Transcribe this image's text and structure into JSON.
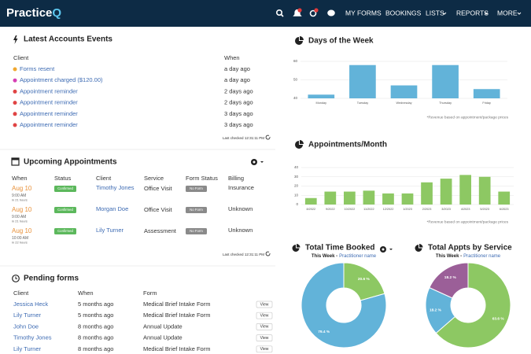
{
  "nav": {
    "logo": "Practice",
    "logo_q": "Q",
    "items": [
      "MY FORMS",
      "BOOKINGS",
      "LISTS",
      "REPORTS",
      "MORE"
    ]
  },
  "events": {
    "title": "Latest Accounts Events",
    "columns": [
      "Client",
      "When"
    ],
    "rows": [
      {
        "event": "Forms resent",
        "when": "a day ago",
        "color": "#f0a830"
      },
      {
        "event": "Appointment charged ($120.00)",
        "when": "a day ago",
        "color": "#d63fb4"
      },
      {
        "event": "Appointment reminder",
        "when": "2 days ago",
        "color": "#e04444"
      },
      {
        "event": "Appointment reminder",
        "when": "2 days ago",
        "color": "#e04444"
      },
      {
        "event": "Appointment reminder",
        "when": "3 days ago",
        "color": "#e04444"
      },
      {
        "event": "Appointment reminder",
        "when": "3 days ago",
        "color": "#e04444"
      }
    ],
    "last_checked": "Last checked 12:31:11 PM"
  },
  "appointments": {
    "title": "Upcoming Appointments",
    "columns": [
      "When",
      "Status",
      "Client",
      "Service",
      "Form Status",
      "Billing"
    ],
    "rows": [
      {
        "date": "Aug 10",
        "time": "9:00 AM",
        "relative": "in 21 hours",
        "status": "Confirmed",
        "client": "Timothy Jones",
        "service": "Office Visit",
        "form_status": "No Form",
        "billing": "Insurance"
      },
      {
        "date": "Aug 10",
        "time": "9:00 AM",
        "relative": "in 21 hours",
        "status": "Confirmed",
        "client": "Morgan Doe",
        "service": "Office Visit",
        "form_status": "No Form",
        "billing": "Unknown"
      },
      {
        "date": "Aug 10",
        "time": "10:00 AM",
        "relative": "in 22 hours",
        "status": "Confirmed",
        "client": "Lily Turner",
        "service": "Assessment",
        "form_status": "No Form",
        "billing": "Unknown"
      }
    ],
    "last_checked": "Last checked 12:31:11 PM"
  },
  "pending": {
    "title": "Pending forms",
    "columns": [
      "Client",
      "When",
      "Form"
    ],
    "action": "View",
    "rows": [
      {
        "client": "Jessica Heck",
        "when": "5 months ago",
        "form": "Medical Brief Intake Form"
      },
      {
        "client": "Lily Turner",
        "when": "5 months ago",
        "form": "Medical Brief Intake Form"
      },
      {
        "client": "John Doe",
        "when": "8 months ago",
        "form": "Annual Update"
      },
      {
        "client": "Timothy Jones",
        "when": "8 months ago",
        "form": "Annual Update"
      },
      {
        "client": "Lily Turner",
        "when": "8 months ago",
        "form": "Medical Brief Intake Form"
      }
    ]
  },
  "days_chart": {
    "type": "bar",
    "title": "Days of the Week",
    "categories": [
      "Monday",
      "Tuesday",
      "Wednesday",
      "Thursday",
      "Friday"
    ],
    "values": [
      42,
      58,
      47,
      58,
      45
    ],
    "color": "#62b3d9",
    "ylim": [
      40,
      60
    ],
    "yticks": [
      40,
      50,
      60
    ],
    "grid": true,
    "note": "*Revenue based on appointment/package prices"
  },
  "month_chart": {
    "type": "bar",
    "title": "Appointments/Month",
    "categories": [
      "8/2022",
      "9/2022",
      "10/2022",
      "11/2022",
      "12/2022",
      "1/2023",
      "2/2023",
      "3/2023",
      "4/2023",
      "5/2023",
      "6/2023"
    ],
    "values": [
      7,
      14,
      14,
      15,
      12,
      12,
      24,
      28,
      32,
      30,
      14
    ],
    "color": "#8dc863",
    "ylim": [
      0,
      40
    ],
    "yticks": [
      0,
      10,
      20,
      30,
      40
    ],
    "grid": true,
    "note": "*Revenue based on appointment/package prices"
  },
  "time_booked": {
    "type": "pie",
    "title": "Total Time Booked",
    "subtitle": "This Week -",
    "subtitle_link": "Practitioner name",
    "values": [
      20.6,
      79.4
    ],
    "value_labels": [
      "20.6 %",
      "79.4 %"
    ],
    "colors": [
      "#8dc863",
      "#62b3d9"
    ]
  },
  "appts_by_service": {
    "type": "pie",
    "title": "Total Appts by Service",
    "subtitle": "This Week -",
    "subtitle_link": "Practitioner name",
    "values": [
      63.6,
      18.2,
      18.2
    ],
    "value_labels": [
      "63.6 %",
      "18.2 %",
      "18.2 %"
    ],
    "colors": [
      "#8dc863",
      "#62b3d9",
      "#9b5f98"
    ]
  }
}
